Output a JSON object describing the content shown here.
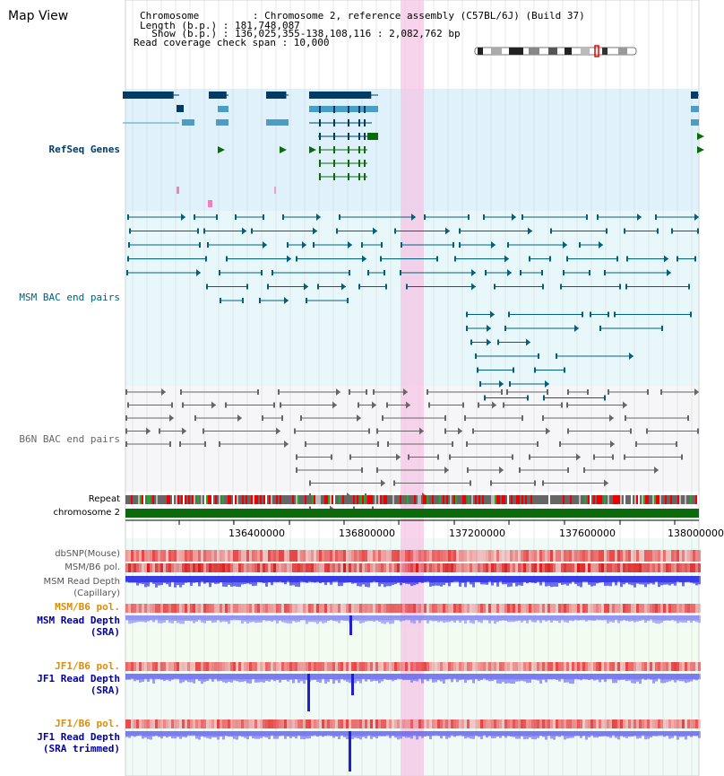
{
  "view": {
    "title": "Map View",
    "chromosome_line": "Chromosome         : Chromosome 2, reference assembly (C57BL/6J) (Build 37)",
    "length_line": "Length (b.p.) : 181,748,087",
    "show_line": "  Show (b.p.) : 136,025,355-138,108,116 : 2,082,762 bp",
    "span_line": "Read coverage check span : 10,000"
  },
  "tracks": {
    "refseq": {
      "label": "RefSeq Genes",
      "color": "#003c64"
    },
    "msm_bac": {
      "label": "MSM BAC end pairs",
      "color": "#00607e"
    },
    "b6n_bac": {
      "label": "B6N BAC end pairs",
      "color": "#666666"
    },
    "repeat": {
      "label": "Repeat"
    },
    "chromosome": {
      "label": "chromosome 2",
      "color": "#0b6a0b"
    },
    "dbsnp": {
      "label": "dbSNP(Mouse)"
    },
    "msm_b6_pol_1": {
      "label": "MSM/B6 pol."
    },
    "msm_read_depth_cap": {
      "label_1": "MSM Read Depth",
      "label_2": "(Capillary)"
    },
    "msm_b6_pol_2": {
      "label": "MSM/B6 pol.",
      "color": "#e08c00"
    },
    "msm_read_depth_sra": {
      "label_1": "MSM Read Depth",
      "label_2": "(SRA)",
      "color": "#0000a0"
    },
    "jf1_b6_pol_1": {
      "label": "JF1/B6 pol.",
      "color": "#e08c00"
    },
    "jf1_read_depth_sra": {
      "label_1": "JF1 Read Depth",
      "label_2": "(SRA)",
      "color": "#0000a0"
    },
    "jf1_b6_pol_2": {
      "label": "JF1/B6 pol.",
      "color": "#e08c00"
    },
    "jf1_read_depth_trim": {
      "label_1": "JF1 Read Depth",
      "label_2": "(SRA trimmed)",
      "color": "#0000a0"
    }
  },
  "axis": {
    "ticks": [
      "136400000",
      "136800000",
      "137200000",
      "137600000",
      "138000000"
    ]
  }
}
